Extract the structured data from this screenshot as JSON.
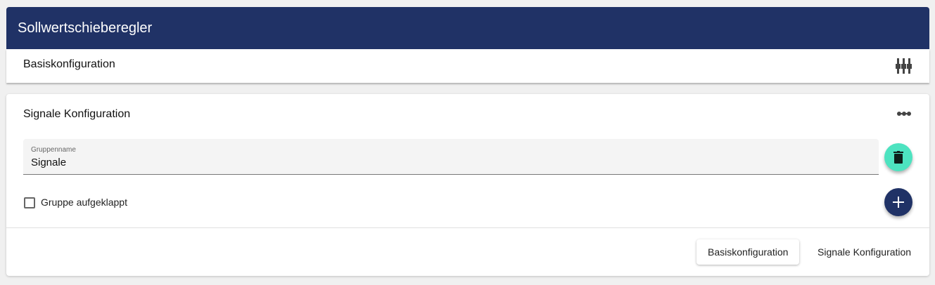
{
  "title": "Sollwertschieberegler",
  "basic": {
    "title": "Basiskonfiguration",
    "icon": "sliders-icon"
  },
  "signals": {
    "title": "Signale Konfiguration",
    "icon": "dots-connected-icon",
    "group_label": "Gruppenname",
    "group_value": "Signale",
    "checkbox_label": "Gruppe aufgeklappt",
    "checkbox_checked": false,
    "delete_color": "#4de3c0",
    "add_color": "#203266"
  },
  "footer": {
    "btn_basic": "Basiskonfiguration",
    "btn_signals": "Signale Konfiguration"
  }
}
